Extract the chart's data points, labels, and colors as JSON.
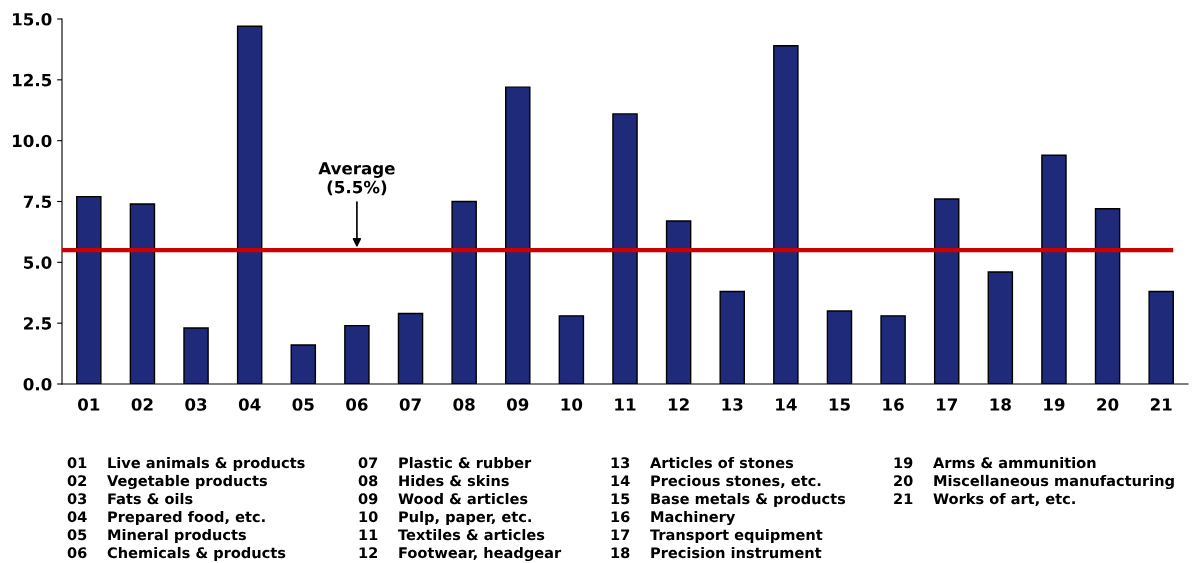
{
  "chart_data": {
    "type": "bar",
    "categories": [
      "01",
      "02",
      "03",
      "04",
      "05",
      "06",
      "07",
      "08",
      "09",
      "10",
      "11",
      "12",
      "13",
      "14",
      "15",
      "16",
      "17",
      "18",
      "19",
      "20",
      "21"
    ],
    "values": [
      7.7,
      7.4,
      2.3,
      14.7,
      1.6,
      2.4,
      2.9,
      7.5,
      12.2,
      2.8,
      11.1,
      6.7,
      3.8,
      13.9,
      3.0,
      2.8,
      7.6,
      4.6,
      9.4,
      7.2,
      3.8
    ],
    "color": "#1f2a7a",
    "ylim": [
      0,
      15
    ],
    "yticks": [
      {
        "value": 0,
        "label": "0.0"
      },
      {
        "value": 2.5,
        "label": "2.5"
      },
      {
        "value": 5,
        "label": "5.0"
      },
      {
        "value": 7.5,
        "label": "7.5"
      },
      {
        "value": 10,
        "label": "10.0"
      },
      {
        "value": 12.5,
        "label": "12.5"
      },
      {
        "value": 15,
        "label": "15.0"
      }
    ],
    "ref_lines": [
      {
        "axis": "y",
        "value": 5.5,
        "label": "Average\n(5.5%)",
        "color": "#cc0000",
        "line_style": "solid"
      }
    ],
    "annotations": [
      "01 Live animals & products",
      "02 Vegetable products",
      "03 Fats & oils",
      "04 Prepared food, etc.",
      "05 Mineral products",
      "06 Chemicals & products",
      "07 Plastic & rubber",
      "08 Hides & skins",
      "09 Wood & articles",
      "10 Pulp, paper, etc.",
      "11 Textiles & articles",
      "12 Footwear, headgear",
      "13 Articles of stones",
      "14 Precious stones, etc.",
      "15 Base metals & products",
      "16 Machinery",
      "17 Transport equipment",
      "18 Precision instrument",
      "19 Arms & ammunition",
      "20 Miscellaneous manufacturing",
      "21 Works of art, etc."
    ],
    "grid": false,
    "legend": false
  }
}
